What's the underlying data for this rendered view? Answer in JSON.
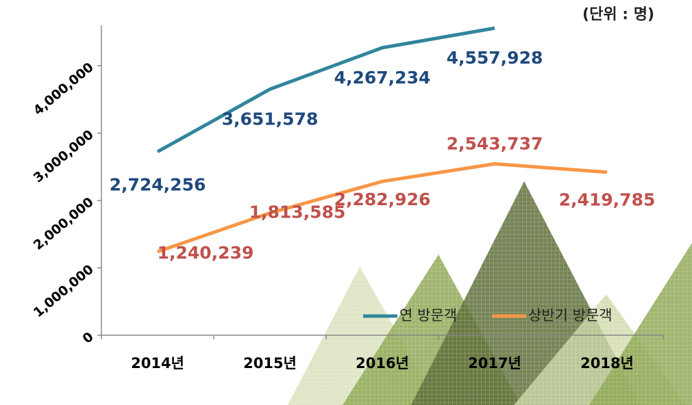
{
  "chart_data": {
    "type": "line",
    "unit": "(단위 : 명)",
    "categories": [
      "2014년",
      "2015년",
      "2016년",
      "2017년",
      "2018년"
    ],
    "series": [
      {
        "name": "연 방문객",
        "color": "#31859c",
        "label_color": "#1f497d",
        "values": [
          2724256,
          3651578,
          4267234,
          4557928,
          null
        ],
        "value_labels": [
          "2,724,256",
          "3,651,578",
          "4,267,234",
          "4,557,928",
          null
        ]
      },
      {
        "name": "상반기 방문객",
        "color": "#f79646",
        "label_color": "#c0504d",
        "values": [
          1240239,
          1813585,
          2282926,
          2543737,
          2419785
        ],
        "value_labels": [
          "1,240,239",
          "1,813,585",
          "2,282,926",
          "2,543,737",
          "2,419,785"
        ]
      }
    ],
    "ylim": [
      0,
      4600000
    ],
    "yticks": [
      0,
      {
        "value": 1000000,
        "label": "1,000,000"
      },
      {
        "value": 2000000,
        "label": "2,000,000"
      },
      {
        "value": 3000000,
        "label": "3,000,000"
      },
      {
        "value": 4000000,
        "label": "4,000,000"
      }
    ]
  }
}
